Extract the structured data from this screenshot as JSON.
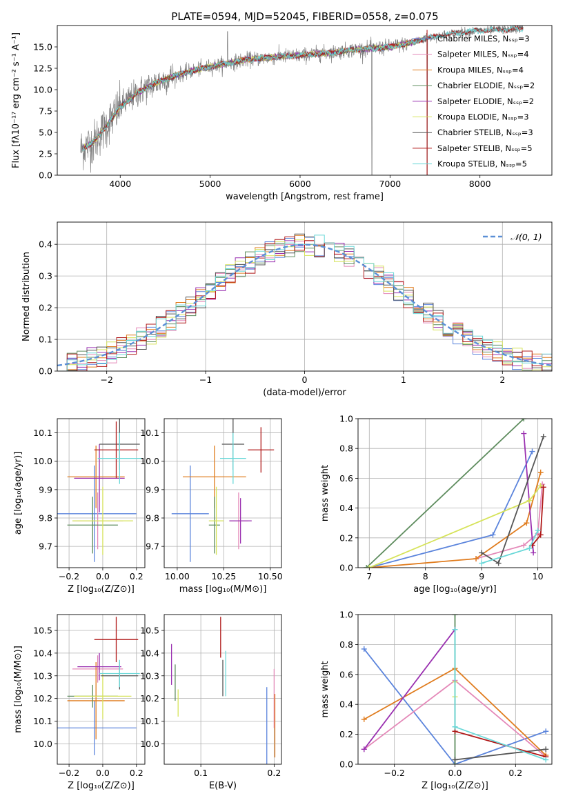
{
  "colors": {
    "Chabrier MILES": "#5b84dc",
    "Salpeter MILES": "#e488b8",
    "Kroupa MILES": "#e07c1e",
    "Chabrier ELODIE": "#5e8c5e",
    "Salpeter ELODIE": "#9a30b0",
    "Kroupa ELODIE": "#d6e35a",
    "Chabrier STELIB": "#555555",
    "Salpeter STELIB": "#b01818",
    "Kroupa STELIB": "#6ad8d8",
    "data": "#808080",
    "normal": "#5b8fd6"
  },
  "chart_data": [
    {
      "type": "line",
      "title": "PLATE=0594, MJD=52045, FIBERID=0558, z=0.075",
      "xlabel": "wavelength [Angstrom, rest frame]",
      "ylabel": "Flux [fλ10⁻¹⁷ erg cm⁻² s⁻¹ A⁻¹]",
      "xlim": [
        3300,
        8800
      ],
      "ylim": [
        0,
        17.5
      ],
      "xticks": [
        4000,
        5000,
        6000,
        7000,
        8000
      ],
      "yticks": [
        0.0,
        2.5,
        5.0,
        7.5,
        10.0,
        12.5,
        15.0
      ],
      "legend_location": "right",
      "series": [
        {
          "name": "Chabrier MILES, Nₛₛₚ=3"
        },
        {
          "name": "Salpeter MILES, Nₛₛₚ=4"
        },
        {
          "name": "Kroupa MILES, Nₛₛₚ=4"
        },
        {
          "name": "Chabrier ELODIE, Nₛₛₚ=2"
        },
        {
          "name": "Salpeter ELODIE, Nₛₛₚ=2"
        },
        {
          "name": "Kroupa ELODIE, Nₛₛₚ=3"
        },
        {
          "name": "Chabrier STELIB, Nₛₛₚ=3"
        },
        {
          "name": "Salpeter STELIB, Nₛₛₚ=5"
        },
        {
          "name": "Kroupa STELIB, Nₛₛₚ=5"
        }
      ],
      "continuum": {
        "x": [
          3550,
          3700,
          3850,
          4000,
          4200,
          4400,
          4600,
          4800,
          5000,
          5200,
          5400,
          5600,
          5800,
          6000,
          6200,
          6400,
          6600,
          6800,
          7000,
          7200,
          7400,
          7600,
          7800,
          8000,
          8200,
          8400
        ],
        "y": [
          3.0,
          3.8,
          5.8,
          8.0,
          9.7,
          10.8,
          11.6,
          12.2,
          12.7,
          13.1,
          13.5,
          13.7,
          13.9,
          14.0,
          14.2,
          14.4,
          14.7,
          14.8,
          15.0,
          15.4,
          16.0,
          16.4,
          16.7,
          16.9,
          17.0,
          17.1
        ]
      }
    },
    {
      "type": "histogram",
      "xlabel": "(data-model)/error",
      "ylabel": "Normed distribution",
      "xlim": [
        -2.5,
        2.5
      ],
      "ylim": [
        0,
        0.47
      ],
      "xticks": [
        -2,
        -1,
        0,
        1,
        2
      ],
      "yticks": [
        0.0,
        0.1,
        0.2,
        0.3,
        0.4
      ],
      "legend": [
        "𝒩(0, 1)"
      ],
      "bin_width": 0.1,
      "bins_start": -2.5,
      "reference_curve": "normal(0,1)"
    },
    {
      "type": "errorbar",
      "xlabel": "Z [log₁₀(Z/Z⊙)]",
      "ylabel": "age  [log₁₀(age/yr)]",
      "xlim": [
        -0.27,
        0.25
      ],
      "ylim": [
        9.625,
        10.15
      ],
      "xticks": [
        -0.2,
        0.0,
        0.2
      ],
      "yticks": [
        9.7,
        9.8,
        9.9,
        10.0,
        10.1
      ],
      "points": [
        {
          "name": "Chabrier MILES",
          "x": -0.05,
          "xerr": 0.25,
          "y": 9.815,
          "yerr": 0.17
        },
        {
          "name": "Salpeter MILES",
          "x": -0.03,
          "xerr": 0.15,
          "y": 9.79,
          "yerr": 0.1
        },
        {
          "name": "Kroupa MILES",
          "x": -0.04,
          "xerr": 0.17,
          "y": 9.945,
          "yerr": 0.11
        },
        {
          "name": "Chabrier ELODIE",
          "x": -0.06,
          "xerr": 0.15,
          "y": 9.775,
          "yerr": 0.1
        },
        {
          "name": "Salpeter ELODIE",
          "x": -0.02,
          "xerr": 0.15,
          "y": 9.94,
          "yerr": 0.12
        },
        {
          "name": "Kroupa ELODIE",
          "x": 0.0,
          "xerr": 0.18,
          "y": 9.79,
          "yerr": 0.12
        },
        {
          "name": "Chabrier STELIB",
          "x": 0.1,
          "xerr": 0.12,
          "y": 10.06,
          "yerr": 0.09
        },
        {
          "name": "Salpeter STELIB",
          "x": 0.08,
          "xerr": 0.13,
          "y": 10.04,
          "yerr": 0.1
        },
        {
          "name": "Kroupa STELIB",
          "x": 0.1,
          "xerr": 0.13,
          "y": 10.01,
          "yerr": 0.09
        }
      ]
    },
    {
      "type": "errorbar",
      "xlabel": "mass [log₁₀(M/M⊙)]",
      "xlim": [
        9.93,
        10.56
      ],
      "ylim": [
        9.625,
        10.15
      ],
      "xticks": [
        10.0,
        10.25,
        10.5
      ],
      "yticks": [
        9.7,
        9.8,
        9.9,
        10.0,
        10.1
      ],
      "points": [
        {
          "name": "Chabrier MILES",
          "x": 10.07,
          "xerr": 0.1,
          "y": 9.815,
          "yerr": 0.17
        },
        {
          "name": "Salpeter MILES",
          "x": 10.33,
          "xerr": 0.05,
          "y": 9.79,
          "yerr": 0.1
        },
        {
          "name": "Kroupa MILES",
          "x": 10.2,
          "xerr": 0.17,
          "y": 9.945,
          "yerr": 0.11
        },
        {
          "name": "Chabrier ELODIE",
          "x": 10.2,
          "xerr": 0.03,
          "y": 9.775,
          "yerr": 0.1
        },
        {
          "name": "Salpeter ELODIE",
          "x": 10.34,
          "xerr": 0.06,
          "y": 9.79,
          "yerr": 0.08
        },
        {
          "name": "Kroupa ELODIE",
          "x": 10.21,
          "xerr": 0.04,
          "y": 9.79,
          "yerr": 0.12
        },
        {
          "name": "Chabrier STELIB",
          "x": 10.3,
          "xerr": 0.06,
          "y": 10.06,
          "yerr": 0.09
        },
        {
          "name": "Salpeter STELIB",
          "x": 10.45,
          "xerr": 0.07,
          "y": 10.04,
          "yerr": 0.08
        },
        {
          "name": "Kroupa STELIB",
          "x": 10.3,
          "xerr": 0.07,
          "y": 10.01,
          "yerr": 0.09
        }
      ]
    },
    {
      "type": "line",
      "xlabel": "age  [log₁₀(age/yr)]",
      "ylabel": "mass weight",
      "xlim": [
        6.8,
        10.25
      ],
      "ylim": [
        0,
        1.0
      ],
      "xticks": [
        7,
        8,
        9,
        10
      ],
      "yticks": [
        0.0,
        0.2,
        0.4,
        0.6,
        0.8,
        1.0
      ],
      "series": [
        {
          "name": "Chabrier MILES",
          "x": [
            7.0,
            9.2,
            9.9
          ],
          "y": [
            0.0,
            0.22,
            0.78
          ]
        },
        {
          "name": "Salpeter MILES",
          "x": [
            8.9,
            9.75,
            10.0,
            10.08
          ],
          "y": [
            0.06,
            0.15,
            0.23,
            0.56
          ]
        },
        {
          "name": "Kroupa MILES",
          "x": [
            7.0,
            8.9,
            9.8,
            10.05
          ],
          "y": [
            0.0,
            0.06,
            0.3,
            0.64
          ]
        },
        {
          "name": "Chabrier ELODIE",
          "x": [
            6.95,
            9.75
          ],
          "y": [
            0.0,
            1.0
          ]
        },
        {
          "name": "Salpeter ELODIE",
          "x": [
            9.75,
            9.92
          ],
          "y": [
            0.9,
            0.1
          ]
        },
        {
          "name": "Kroupa ELODIE",
          "x": [
            7.0,
            9.85,
            10.05
          ],
          "y": [
            0.0,
            0.45,
            0.55
          ]
        },
        {
          "name": "Chabrier STELIB",
          "x": [
            9.0,
            9.3,
            10.1
          ],
          "y": [
            0.1,
            0.03,
            0.88
          ]
        },
        {
          "name": "Salpeter STELIB",
          "x": [
            9.9,
            10.05,
            10.1
          ],
          "y": [
            0.15,
            0.22,
            0.54
          ]
        },
        {
          "name": "Kroupa STELIB",
          "x": [
            9.0,
            9.85,
            10.0
          ],
          "y": [
            0.03,
            0.13,
            0.25
          ]
        }
      ]
    },
    {
      "type": "errorbar",
      "xlabel": "Z [log₁₀(Z/Z⊙)]",
      "ylabel": "mass [log₁₀(M/M⊙)]",
      "xlim": [
        -0.27,
        0.25
      ],
      "ylim": [
        9.91,
        10.57
      ],
      "xticks": [
        -0.2,
        0.0,
        0.2
      ],
      "yticks": [
        10.0,
        10.1,
        10.2,
        10.3,
        10.4,
        10.5
      ],
      "points": [
        {
          "name": "Chabrier MILES",
          "x": -0.05,
          "xerr": 0.25,
          "y": 10.07,
          "yerr": 0.12
        },
        {
          "name": "Salpeter MILES",
          "x": -0.03,
          "xerr": 0.15,
          "y": 10.33,
          "yerr": 0.06
        },
        {
          "name": "Kroupa MILES",
          "x": -0.04,
          "xerr": 0.17,
          "y": 10.19,
          "yerr": 0.17
        },
        {
          "name": "Chabrier ELODIE",
          "x": -0.06,
          "xerr": 0.15,
          "y": 10.21,
          "yerr": 0.05
        },
        {
          "name": "Salpeter ELODIE",
          "x": -0.02,
          "xerr": 0.13,
          "y": 10.34,
          "yerr": 0.06
        },
        {
          "name": "Kroupa ELODIE",
          "x": 0.0,
          "xerr": 0.17,
          "y": 10.21,
          "yerr": 0.1
        },
        {
          "name": "Chabrier STELIB",
          "x": 0.1,
          "xerr": 0.11,
          "y": 10.3,
          "yerr": 0.06
        },
        {
          "name": "Salpeter STELIB",
          "x": 0.08,
          "xerr": 0.13,
          "y": 10.46,
          "yerr": 0.1
        },
        {
          "name": "Kroupa STELIB",
          "x": 0.1,
          "xerr": 0.12,
          "y": 10.31,
          "yerr": 0.06
        }
      ]
    },
    {
      "type": "errorbar",
      "xlabel": "E(B-V)",
      "xlim": [
        0.05,
        0.21
      ],
      "ylim": [
        9.91,
        10.57
      ],
      "xticks": [
        0.1,
        0.2
      ],
      "yticks": [
        10.0,
        10.1,
        10.2,
        10.3,
        10.4,
        10.5
      ],
      "points": [
        {
          "name": "Chabrier MILES",
          "x": 0.19,
          "y": 10.07,
          "yerr": 0.18
        },
        {
          "name": "Salpeter MILES",
          "x": 0.2,
          "y": 10.2,
          "yerr": 0.13
        },
        {
          "name": "Kroupa MILES",
          "x": 0.201,
          "y": 10.08,
          "yerr": 0.14
        },
        {
          "name": "Chabrier ELODIE",
          "x": 0.065,
          "y": 10.27,
          "yerr": 0.08
        },
        {
          "name": "Salpeter ELODIE",
          "x": 0.06,
          "y": 10.35,
          "yerr": 0.09
        },
        {
          "name": "Kroupa ELODIE",
          "x": 0.069,
          "y": 10.18,
          "yerr": 0.06
        },
        {
          "name": "Chabrier STELIB",
          "x": 0.13,
          "y": 10.29,
          "yerr": 0.08
        },
        {
          "name": "Salpeter STELIB",
          "x": 0.127,
          "y": 10.47,
          "yerr": 0.09
        },
        {
          "name": "Kroupa STELIB",
          "x": 0.134,
          "y": 10.31,
          "yerr": 0.1
        }
      ]
    },
    {
      "type": "line",
      "xlabel": "Z [log₁₀(Z/Z⊙)]",
      "ylabel": "mass weight",
      "xlim": [
        -0.32,
        0.32
      ],
      "ylim": [
        0,
        1.0
      ],
      "xticks": [
        -0.2,
        0.0,
        0.2
      ],
      "yticks": [
        0.0,
        0.2,
        0.4,
        0.6,
        0.8,
        1.0
      ],
      "series": [
        {
          "name": "Chabrier MILES",
          "x": [
            -0.3,
            0.0,
            0.3
          ],
          "y": [
            0.77,
            0.0,
            0.22
          ]
        },
        {
          "name": "Salpeter MILES",
          "x": [
            -0.3,
            0.0,
            0.3
          ],
          "y": [
            0.1,
            0.56,
            0.05
          ]
        },
        {
          "name": "Kroupa MILES",
          "x": [
            -0.3,
            0.0,
            0.3
          ],
          "y": [
            0.3,
            0.64,
            0.06
          ]
        },
        {
          "name": "Chabrier ELODIE",
          "x": [
            0.0,
            0.0
          ],
          "y": [
            0.0,
            1.0
          ]
        },
        {
          "name": "Salpeter ELODIE",
          "x": [
            -0.3,
            0.0
          ],
          "y": [
            0.1,
            0.9
          ]
        },
        {
          "name": "Kroupa ELODIE",
          "x": [
            0.0,
            0.0
          ],
          "y": [
            0.45,
            0.55
          ]
        },
        {
          "name": "Chabrier STELIB",
          "x": [
            0.0,
            0.3
          ],
          "y": [
            0.03,
            0.1
          ]
        },
        {
          "name": "Salpeter STELIB",
          "x": [
            0.0,
            0.3
          ],
          "y": [
            0.22,
            0.05
          ]
        },
        {
          "name": "Kroupa STELIB",
          "x": [
            0.0,
            0.0,
            0.3
          ],
          "y": [
            0.9,
            0.25,
            0.03
          ]
        }
      ]
    }
  ]
}
